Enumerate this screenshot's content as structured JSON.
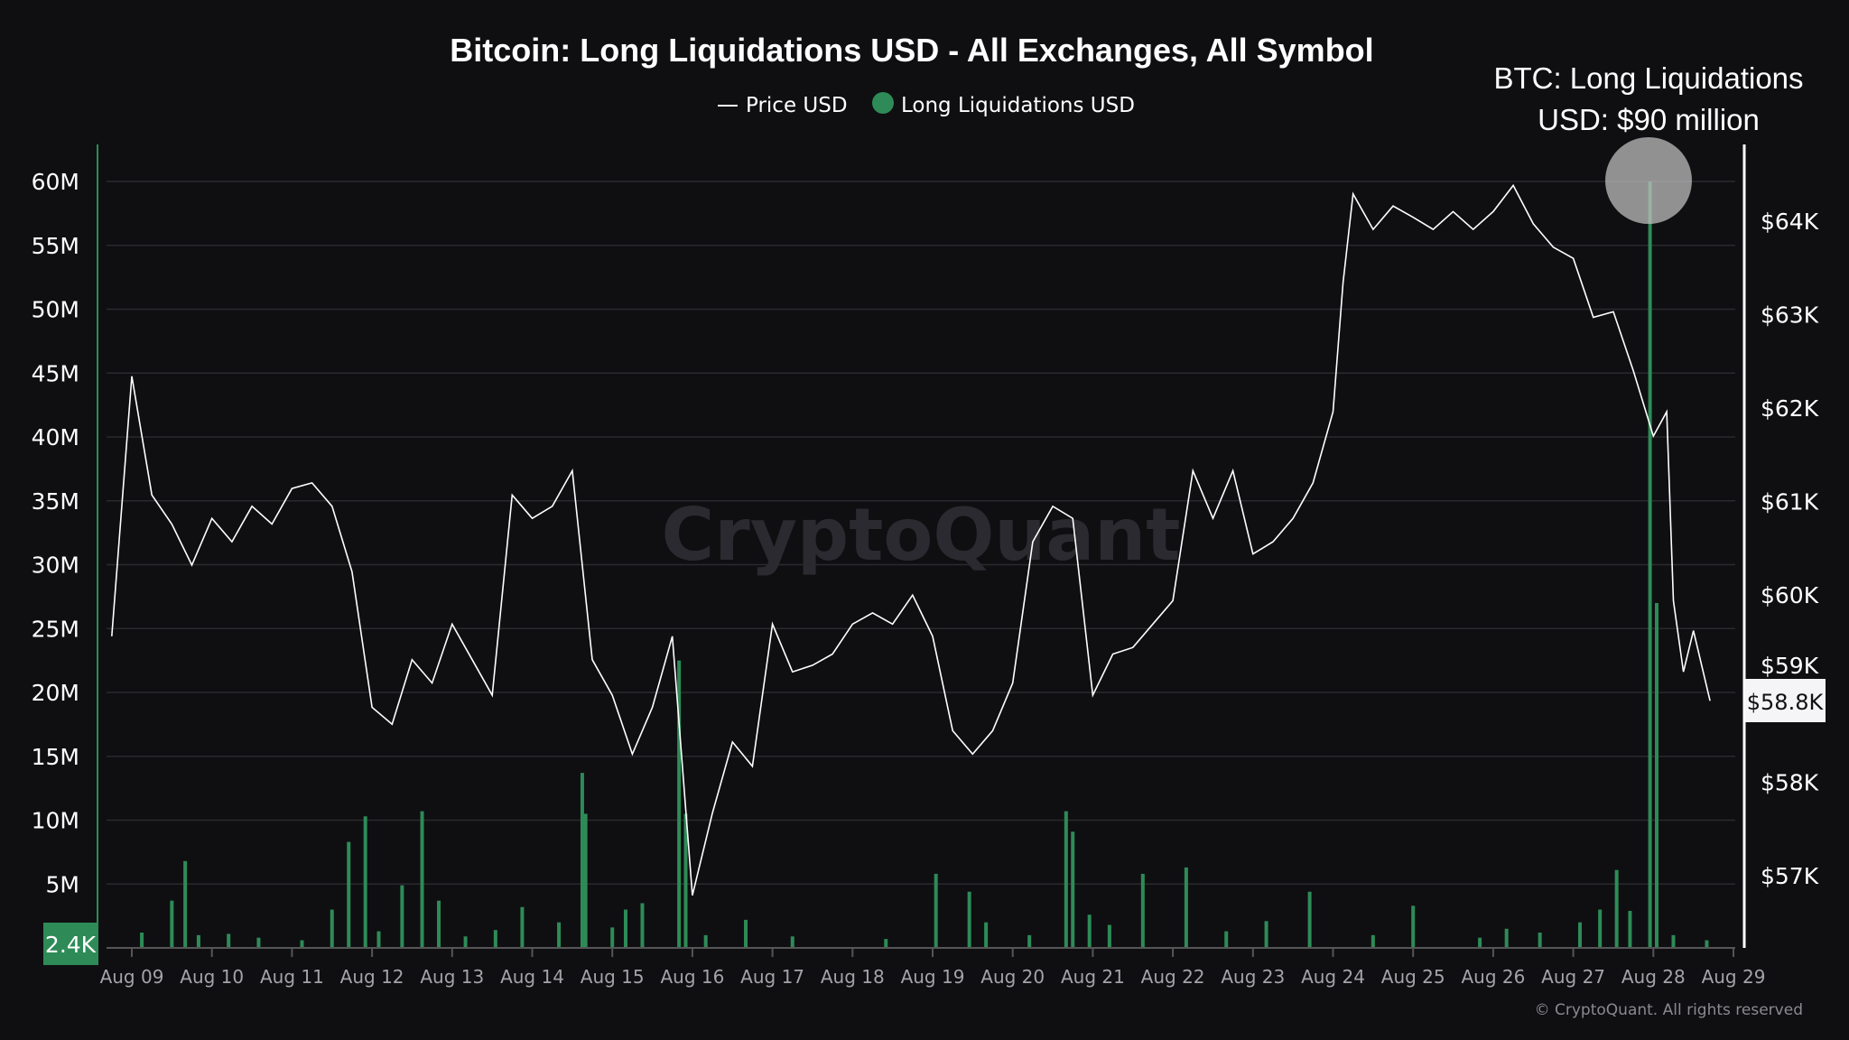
{
  "chart_data": {
    "type": "bar+line",
    "title": "Bitcoin: Long Liquidations USD - All Exchanges, All Symbol",
    "legend": {
      "placement": "top-center",
      "entries": [
        {
          "label": "Price USD",
          "marker": "line",
          "color": "#ffffff"
        },
        {
          "label": "Long Liquidations USD",
          "marker": "dot",
          "color": "#2e8b57"
        }
      ]
    },
    "annotation": {
      "line1": "BTC: Long Liquidations",
      "line2": "USD: $90 million"
    },
    "left_axis": {
      "ticks": [
        "5M",
        "10M",
        "15M",
        "20M",
        "25M",
        "30M",
        "35M",
        "40M",
        "45M",
        "50M",
        "55M",
        "60M"
      ],
      "tick_values": [
        5,
        10,
        15,
        20,
        25,
        30,
        35,
        40,
        45,
        50,
        55,
        60
      ],
      "unit": "million USD",
      "range": [
        0,
        62.8
      ],
      "current_label": "2.4K"
    },
    "right_axis": {
      "ticks": [
        "$57K",
        "$58K",
        "$59K",
        "$60K",
        "$61K",
        "$62K",
        "$63K",
        "$64K"
      ],
      "tick_values": [
        57,
        58,
        59,
        60,
        61,
        62,
        63,
        64
      ],
      "unit": "thousand USD",
      "range": [
        56.24,
        64.42
      ],
      "current_label": "$58.8K"
    },
    "x_ticks": [
      "Aug 09",
      "Aug 10",
      "Aug 11",
      "Aug 12",
      "Aug 13",
      "Aug 14",
      "Aug 15",
      "Aug 16",
      "Aug 17",
      "Aug 18",
      "Aug 19",
      "Aug 20",
      "Aug 21",
      "Aug 22",
      "Aug 23",
      "Aug 24",
      "Aug 25",
      "Aug 26",
      "Aug 27",
      "Aug 28",
      "Aug 29"
    ],
    "grid": true,
    "watermark": "CryptoQuant",
    "credit": "© CryptoQuant. All rights reserved",
    "price_series": [
      [
        "Aug 08 18:00",
        59.56
      ],
      [
        "Aug 09 00:00",
        62.34
      ],
      [
        "Aug 09 06:00",
        61.07
      ],
      [
        "Aug 09 12:00",
        60.76
      ],
      [
        "Aug 09 18:00",
        60.32
      ],
      [
        "Aug 10 00:00",
        60.82
      ],
      [
        "Aug 10 06:00",
        60.57
      ],
      [
        "Aug 10 12:00",
        60.95
      ],
      [
        "Aug 10 18:00",
        60.76
      ],
      [
        "Aug 11 00:00",
        61.14
      ],
      [
        "Aug 11 06:00",
        61.2
      ],
      [
        "Aug 11 12:00",
        60.95
      ],
      [
        "Aug 11 18:00",
        60.25
      ],
      [
        "Aug 12 00:00",
        58.8
      ],
      [
        "Aug 12 06:00",
        58.62
      ],
      [
        "Aug 12 12:00",
        59.31
      ],
      [
        "Aug 12 18:00",
        59.06
      ],
      [
        "Aug 13 00:00",
        59.69
      ],
      [
        "Aug 13 06:00",
        59.31
      ],
      [
        "Aug 13 12:00",
        58.93
      ],
      [
        "Aug 13 18:00",
        61.07
      ],
      [
        "Aug 14 00:00",
        60.82
      ],
      [
        "Aug 14 06:00",
        60.95
      ],
      [
        "Aug 14 12:00",
        61.33
      ],
      [
        "Aug 14 18:00",
        59.31
      ],
      [
        "Aug 15 00:00",
        58.93
      ],
      [
        "Aug 15 06:00",
        58.3
      ],
      [
        "Aug 15 12:00",
        58.8
      ],
      [
        "Aug 15 18:00",
        59.56
      ],
      [
        "Aug 16 00:00",
        56.79
      ],
      [
        "Aug 16 06:00",
        57.67
      ],
      [
        "Aug 16 12:00",
        58.43
      ],
      [
        "Aug 16 18:00",
        58.17
      ],
      [
        "Aug 17 00:00",
        59.69
      ],
      [
        "Aug 17 06:00",
        59.18
      ],
      [
        "Aug 17 12:00",
        59.25
      ],
      [
        "Aug 17 18:00",
        59.37
      ],
      [
        "Aug 18 00:00",
        59.69
      ],
      [
        "Aug 18 06:00",
        59.81
      ],
      [
        "Aug 18 12:00",
        59.69
      ],
      [
        "Aug 18 18:00",
        60.0
      ],
      [
        "Aug 19 00:00",
        59.56
      ],
      [
        "Aug 19 06:00",
        58.55
      ],
      [
        "Aug 19 12:00",
        58.3
      ],
      [
        "Aug 19 18:00",
        58.55
      ],
      [
        "Aug 20 00:00",
        59.06
      ],
      [
        "Aug 20 06:00",
        60.57
      ],
      [
        "Aug 20 12:00",
        60.95
      ],
      [
        "Aug 20 18:00",
        60.82
      ],
      [
        "Aug 21 00:00",
        58.93
      ],
      [
        "Aug 21 06:00",
        59.37
      ],
      [
        "Aug 21 12:00",
        59.44
      ],
      [
        "Aug 21 18:00",
        59.69
      ],
      [
        "Aug 22 00:00",
        59.94
      ],
      [
        "Aug 22 06:00",
        61.33
      ],
      [
        "Aug 22 12:00",
        60.82
      ],
      [
        "Aug 22 18:00",
        61.33
      ],
      [
        "Aug 23 00:00",
        60.44
      ],
      [
        "Aug 23 06:00",
        60.57
      ],
      [
        "Aug 23 12:00",
        60.82
      ],
      [
        "Aug 23 18:00",
        61.2
      ],
      [
        "Aug 24 00:00",
        61.96
      ],
      [
        "Aug 24 03:00",
        63.34
      ],
      [
        "Aug 24 06:00",
        64.29
      ],
      [
        "Aug 24 12:00",
        63.91
      ],
      [
        "Aug 24 18:00",
        64.16
      ],
      [
        "Aug 25 00:00",
        64.04
      ],
      [
        "Aug 25 06:00",
        63.91
      ],
      [
        "Aug 25 12:00",
        64.1
      ],
      [
        "Aug 25 18:00",
        63.91
      ],
      [
        "Aug 26 00:00",
        64.1
      ],
      [
        "Aug 26 06:00",
        64.38
      ],
      [
        "Aug 26 12:00",
        63.97
      ],
      [
        "Aug 26 18:00",
        63.72
      ],
      [
        "Aug 27 00:00",
        63.6
      ],
      [
        "Aug 27 06:00",
        62.97
      ],
      [
        "Aug 27 12:00",
        63.03
      ],
      [
        "Aug 27 18:00",
        62.4
      ],
      [
        "Aug 28 00:00",
        61.7
      ],
      [
        "Aug 28 04:00",
        61.96
      ],
      [
        "Aug 28 06:00",
        59.94
      ],
      [
        "Aug 28 09:00",
        59.18
      ],
      [
        "Aug 28 12:00",
        59.62
      ],
      [
        "Aug 28 17:00",
        58.87
      ]
    ],
    "liquidation_bars_musd": [
      [
        "Aug 09 03:00",
        1.2
      ],
      [
        "Aug 09 12:00",
        3.7
      ],
      [
        "Aug 09 16:00",
        6.8
      ],
      [
        "Aug 09 20:00",
        1.0
      ],
      [
        "Aug 10 05:00",
        1.1
      ],
      [
        "Aug 10 14:00",
        0.8
      ],
      [
        "Aug 11 03:00",
        0.6
      ],
      [
        "Aug 11 12:00",
        3.0
      ],
      [
        "Aug 11 17:00",
        8.3
      ],
      [
        "Aug 11 22:00",
        10.3
      ],
      [
        "Aug 12 02:00",
        1.3
      ],
      [
        "Aug 12 09:00",
        4.9
      ],
      [
        "Aug 12 15:00",
        10.7
      ],
      [
        "Aug 12 20:00",
        3.7
      ],
      [
        "Aug 13 04:00",
        0.9
      ],
      [
        "Aug 13 13:00",
        1.4
      ],
      [
        "Aug 13 21:00",
        3.2
      ],
      [
        "Aug 14 08:00",
        2.0
      ],
      [
        "Aug 14 15:00",
        13.7
      ],
      [
        "Aug 14 16:00",
        10.5
      ],
      [
        "Aug 15 00:00",
        1.6
      ],
      [
        "Aug 15 04:00",
        3.0
      ],
      [
        "Aug 15 09:00",
        3.5
      ],
      [
        "Aug 15 20:00",
        22.5
      ],
      [
        "Aug 15 22:00",
        10.5
      ],
      [
        "Aug 16 04:00",
        1.0
      ],
      [
        "Aug 16 16:00",
        2.2
      ],
      [
        "Aug 17 06:00",
        0.9
      ],
      [
        "Aug 18 10:00",
        0.7
      ],
      [
        "Aug 19 01:00",
        5.8
      ],
      [
        "Aug 19 11:00",
        4.4
      ],
      [
        "Aug 19 16:00",
        2.0
      ],
      [
        "Aug 20 05:00",
        1.0
      ],
      [
        "Aug 20 16:00",
        10.7
      ],
      [
        "Aug 20 18:00",
        9.1
      ],
      [
        "Aug 20 23:00",
        2.6
      ],
      [
        "Aug 21 05:00",
        1.8
      ],
      [
        "Aug 21 15:00",
        5.8
      ],
      [
        "Aug 22 04:00",
        6.3
      ],
      [
        "Aug 22 16:00",
        1.3
      ],
      [
        "Aug 23 04:00",
        2.1
      ],
      [
        "Aug 23 17:00",
        4.4
      ],
      [
        "Aug 24 12:00",
        1.0
      ],
      [
        "Aug 25 00:00",
        3.3
      ],
      [
        "Aug 25 20:00",
        0.8
      ],
      [
        "Aug 26 04:00",
        1.5
      ],
      [
        "Aug 26 14:00",
        1.2
      ],
      [
        "Aug 27 02:00",
        2.0
      ],
      [
        "Aug 27 08:00",
        3.0
      ],
      [
        "Aug 27 13:00",
        6.1
      ],
      [
        "Aug 27 17:00",
        2.9
      ],
      [
        "Aug 27 23:00",
        90
      ],
      [
        "Aug 28 01:00",
        27.0
      ],
      [
        "Aug 28 06:00",
        1.0
      ],
      [
        "Aug 28 16:00",
        0.6
      ]
    ],
    "colors": {
      "background": "#0f0f12",
      "bars": "#2e8b57",
      "price": "#ffffff",
      "grid": "#2a2a2e",
      "axis_text": "#ffffff",
      "x_text": "#a3a3a8"
    }
  }
}
